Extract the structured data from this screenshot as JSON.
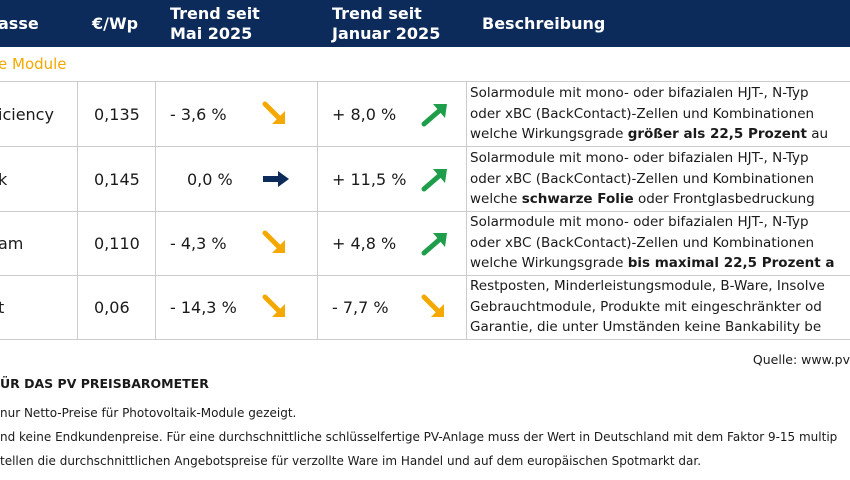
{
  "header": {
    "klasse": "asse",
    "price": "€/Wp",
    "trend_mai_1": "Trend seit",
    "trend_mai_2": "Mai 2025",
    "trend_jan_1": "Trend seit",
    "trend_jan_2": "Januar 2025",
    "beschreibung": "Beschreibung"
  },
  "section_label": "e Module",
  "colors": {
    "header_bg": "#0d2b5a",
    "section": "#f5a800",
    "up": "#1e9e4a",
    "down": "#f5a800",
    "flat": "#0d2b5a"
  },
  "rows": [
    {
      "name": "iciency",
      "price": "0,135",
      "trend_mai": "-  3,6 %",
      "trend_mai_icon": "arrow-down-right-icon",
      "trend_jan": "+ 8,0 %",
      "trend_jan_icon": "arrow-up-right-icon",
      "desc_1": "Solarmodule mit mono- oder bifazialen HJT-, N-Typ",
      "desc_2": "oder xBC (BackContact)-Zellen und Kombinationen",
      "desc_3a": "welche Wirkungsgrade ",
      "desc_3b": "größer als 22,5 Prozent",
      "desc_3c": " au"
    },
    {
      "name": "k",
      "price": "0,145",
      "trend_mai": "0,0 %",
      "trend_mai_icon": "arrow-right-icon",
      "trend_jan": "+ 11,5 %",
      "trend_jan_icon": "arrow-up-right-icon",
      "desc_1": "Solarmodule mit mono- oder bifazialen HJT-, N-Typ",
      "desc_2": "oder xBC (BackContact)-Zellen und Kombinationen",
      "desc_3a": "welche ",
      "desc_3b": "schwarze Folie",
      "desc_3c": " oder Frontglasbedruckung"
    },
    {
      "name": "am",
      "price": "0,110",
      "trend_mai": "-  4,3 %",
      "trend_mai_icon": "arrow-down-right-icon",
      "trend_jan": "+ 4,8 %",
      "trend_jan_icon": "arrow-up-right-icon",
      "desc_1": "Solarmodule mit mono- oder bifazialen HJT-, N-Typ",
      "desc_2": "oder xBC (BackContact)-Zellen und Kombinationen",
      "desc_3a": "welche Wirkungsgrade ",
      "desc_3b": "bis maximal 22,5 Prozent a",
      "desc_3c": ""
    },
    {
      "name": "t",
      "price": "0,06",
      "trend_mai": "- 14,3 %",
      "trend_mai_icon": "arrow-down-right-icon",
      "trend_jan": "-  7,7 %",
      "trend_jan_icon": "arrow-down-right-icon",
      "desc_1": "Restposten, Minderleistungsmodule, B-Ware, Insolve",
      "desc_2": "Gebrauchtmodule, Produkte mit eingeschränkter od",
      "desc_3a": "Garantie, die unter Umständen keine Bankability be",
      "desc_3b": "",
      "desc_3c": ""
    }
  ],
  "source": "Quelle: www.pv",
  "footnote_title": "ÜR DAS PV PREISBAROMETER",
  "footnotes": [
    "nur Netto-Preise für Photovoltaik-Module gezeigt.",
    "nd keine Endkundenpreise. Für eine durchschnittliche schlüsselfertige PV-Anlage muss der Wert in Deutschland mit dem Faktor 9-15 multip",
    "tellen die durchschnittlichen Angebotspreise für verzollte Ware im Handel und auf dem europäischen Spotmarkt dar."
  ]
}
